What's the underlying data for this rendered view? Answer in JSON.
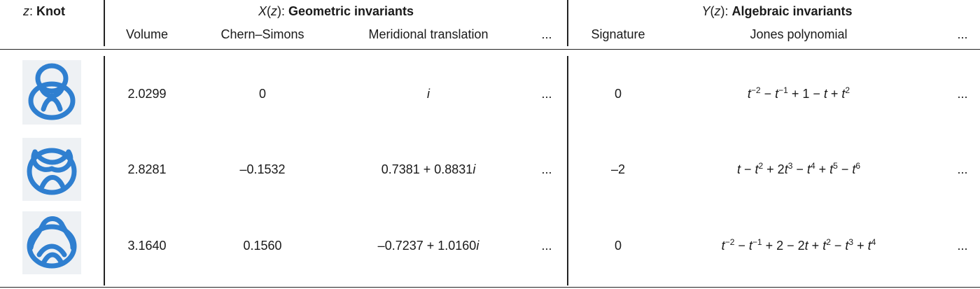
{
  "header": {
    "knot_col": {
      "var": "z",
      "sep": ": ",
      "title": "Knot"
    },
    "geometric_group": {
      "var": "X",
      "arg": "z",
      "sep": ": ",
      "title": "Geometric invariants"
    },
    "algebraic_group": {
      "var": "Y",
      "arg": "z",
      "sep": ": ",
      "title": "Algebraic invariants"
    },
    "columns": {
      "volume": "Volume",
      "chern_simons": "Chern–Simons",
      "meridional": "Meridional translation",
      "geo_more": "...",
      "signature": "Signature",
      "jones": "Jones polynomial",
      "alg_more": "..."
    }
  },
  "rows": [
    {
      "volume": "2.0299",
      "chern_simons": "0",
      "meridional": [
        {
          "t": "i",
          "it": true
        }
      ],
      "geo_more": "...",
      "signature": "0",
      "jones": [
        {
          "t": "t",
          "it": true
        },
        {
          "sup": "−2"
        },
        {
          "t": " − "
        },
        {
          "t": "t",
          "it": true
        },
        {
          "sup": "−1"
        },
        {
          "t": " + 1 − "
        },
        {
          "t": "t",
          "it": true
        },
        {
          "t": " + "
        },
        {
          "t": "t",
          "it": true
        },
        {
          "sup": "2"
        }
      ],
      "alg_more": "..."
    },
    {
      "volume": "2.8281",
      "chern_simons": "–0.1532",
      "meridional": [
        {
          "t": "0.7381 + 0.8831"
        },
        {
          "t": "i",
          "it": true
        }
      ],
      "geo_more": "...",
      "signature": "–2",
      "jones": [
        {
          "t": "t",
          "it": true
        },
        {
          "t": " − "
        },
        {
          "t": "t",
          "it": true
        },
        {
          "sup": "2"
        },
        {
          "t": " + 2"
        },
        {
          "t": "t",
          "it": true
        },
        {
          "sup": "3"
        },
        {
          "t": " − "
        },
        {
          "t": "t",
          "it": true
        },
        {
          "sup": "4"
        },
        {
          "t": " + "
        },
        {
          "t": "t",
          "it": true
        },
        {
          "sup": "5"
        },
        {
          "t": " − "
        },
        {
          "t": "t",
          "it": true
        },
        {
          "sup": "6"
        }
      ],
      "alg_more": "..."
    },
    {
      "volume": "3.1640",
      "chern_simons": "0.1560",
      "meridional": [
        {
          "t": "–0.7237 + 1.0160"
        },
        {
          "t": "i",
          "it": true
        }
      ],
      "geo_more": "...",
      "signature": "0",
      "jones": [
        {
          "t": "t",
          "it": true
        },
        {
          "sup": "−2"
        },
        {
          "t": " − "
        },
        {
          "t": "t",
          "it": true
        },
        {
          "sup": "−1"
        },
        {
          "t": " + 2 − 2"
        },
        {
          "t": "t",
          "it": true
        },
        {
          "t": " + "
        },
        {
          "t": "t",
          "it": true
        },
        {
          "sup": "2"
        },
        {
          "t": " − "
        },
        {
          "t": "t",
          "it": true
        },
        {
          "sup": "3"
        },
        {
          "t": " + "
        },
        {
          "t": "t",
          "it": true
        },
        {
          "sup": "4"
        }
      ],
      "alg_more": "..."
    }
  ],
  "colors": {
    "knot": "#2f7fd0",
    "knot_dark": "#1d5fa8",
    "rule": "#222222"
  }
}
